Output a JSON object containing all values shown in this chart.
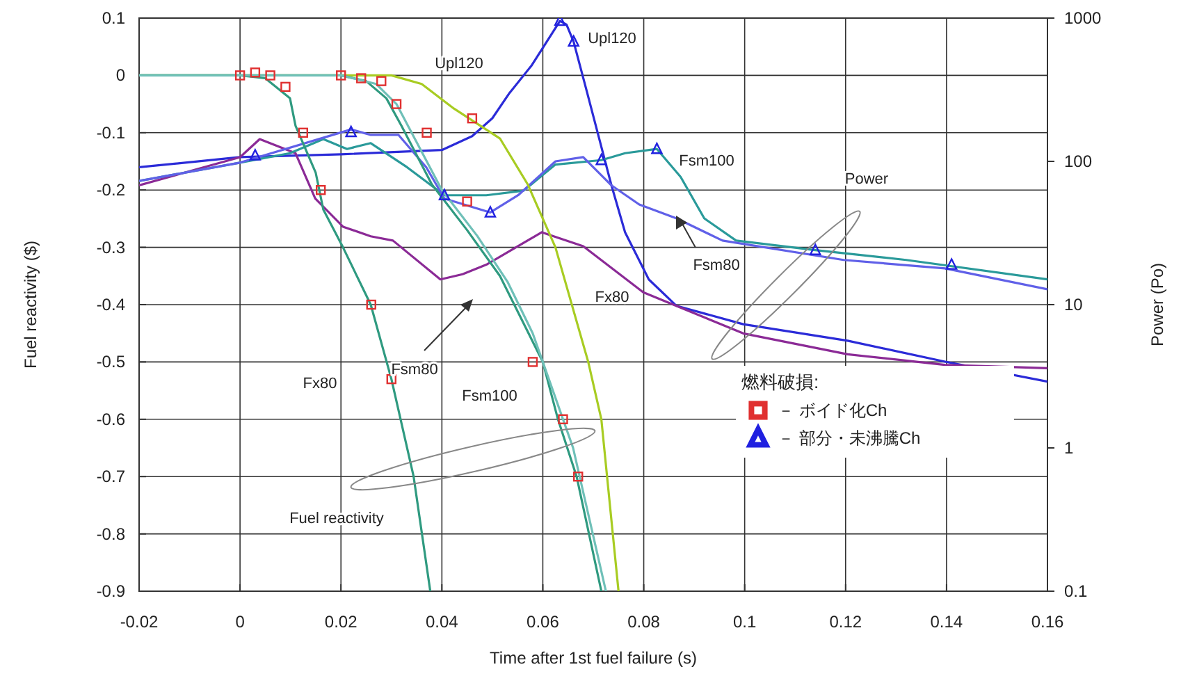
{
  "chart_data": {
    "type": "line",
    "xlabel": "Time after 1st fuel failure (s)",
    "ylabel": "Fuel reactivity ($)",
    "y2label": "Power (Po)",
    "xlim": [
      -0.02,
      0.16
    ],
    "xticks": [
      -0.02,
      0,
      0.02,
      0.04,
      0.06,
      0.08,
      0.1,
      0.12,
      0.14,
      0.16
    ],
    "ylim": [
      -0.9,
      0.1
    ],
    "yticks": [
      0.1,
      0,
      -0.1,
      -0.2,
      -0.3,
      -0.4,
      -0.5,
      -0.6,
      -0.7,
      -0.8,
      -0.9
    ],
    "y2lim": [
      0.1,
      1000
    ],
    "y2ticks": [
      0.1,
      1,
      10,
      100,
      1000
    ],
    "log": "y2",
    "grid": true,
    "legend": "bottom right",
    "legend_title": "燃料破損:",
    "series": [
      {
        "type": "line",
        "axis": "y2",
        "color": "#2b2bd8",
        "x": [
          -0.02,
          0,
          0.02,
          0.04,
          0.046,
          0.05,
          0.0534,
          0.0578,
          0.0634,
          0.0647,
          0.0661,
          0.0688,
          0.0736,
          0.0763,
          0.081,
          0.0865,
          0.0997,
          0.1204,
          0.1397,
          0.16
        ],
        "values": [
          91,
          107,
          112,
          120,
          150,
          200,
          300,
          468,
          955,
          900,
          685,
          300,
          68,
          32,
          15,
          9.8,
          7.3,
          5.6,
          4.0,
          2.9
        ]
      },
      {
        "type": "line",
        "axis": "y2",
        "color": "#8b2a96",
        "x": [
          -0.02,
          0,
          0.0039,
          0.011,
          0.0149,
          0.0204,
          0.0259,
          0.0303,
          0.0397,
          0.0441,
          0.0488,
          0.0598,
          0.068,
          0.0799,
          0.0997,
          0.1204,
          0.1397,
          0.16
        ],
        "values": [
          68,
          107,
          143,
          114,
          55,
          35,
          30,
          28,
          15,
          16.3,
          19,
          32,
          25.6,
          12.2,
          6.3,
          4.5,
          3.8,
          3.6
        ]
      },
      {
        "type": "line",
        "axis": "y2",
        "color": "#2a9a9a",
        "x": [
          -0.02,
          0,
          0.0099,
          0.0165,
          0.0212,
          0.0259,
          0.0331,
          0.0405,
          0.0488,
          0.0562,
          0.0625,
          0.0716,
          0.0763,
          0.0826,
          0.0873,
          0.092,
          0.0983,
          0.114,
          0.132,
          0.16
        ],
        "values": [
          73,
          98,
          114,
          143,
          122,
          134,
          91,
          58,
          58,
          62.5,
          95,
          102,
          114,
          122,
          78,
          40,
          28,
          24,
          20.5,
          15
        ]
      },
      {
        "type": "line",
        "axis": "y2",
        "color": "#6060e8",
        "x": [
          -0.02,
          0,
          0.022,
          0.0259,
          0.0314,
          0.0369,
          0.0405,
          0.0496,
          0.0551,
          0.0625,
          0.068,
          0.0736,
          0.0791,
          0.0865,
          0.0956,
          0.1196,
          0.1397,
          0.16
        ],
        "values": [
          73,
          98,
          167,
          153,
          153,
          91,
          55,
          44,
          58,
          100,
          107,
          68,
          50,
          40,
          28,
          20.5,
          17.9,
          12.8
        ]
      },
      {
        "type": "line",
        "color": "#a8cc22",
        "x": [
          -0.02,
          0.03,
          0.036,
          0.0424,
          0.0515,
          0.057,
          0.0625,
          0.069,
          0.0716,
          0.075
        ],
        "values": [
          0,
          0,
          -0.015,
          -0.058,
          -0.11,
          -0.19,
          -0.3,
          -0.5,
          -0.6,
          -0.9
        ]
      },
      {
        "type": "line",
        "color": "#2f9a80",
        "x": [
          -0.02,
          0,
          0.005,
          0.0099,
          0.011,
          0.015,
          0.0165,
          0.0204,
          0.0259,
          0.03,
          0.0344,
          0.0377
        ],
        "values": [
          0,
          0,
          -0.005,
          -0.04,
          -0.088,
          -0.17,
          -0.234,
          -0.3,
          -0.4,
          -0.53,
          -0.7,
          -0.9
        ]
      },
      {
        "type": "line",
        "color": "#2f9a80",
        "x": [
          -0.02,
          0.02,
          0.025,
          0.029,
          0.032,
          0.038,
          0.045,
          0.0515,
          0.06,
          0.063,
          0.0667,
          0.0716
        ],
        "values": [
          0,
          0,
          -0.01,
          -0.04,
          -0.088,
          -0.19,
          -0.27,
          -0.35,
          -0.5,
          -0.6,
          -0.7,
          -0.9
        ]
      },
      {
        "type": "line",
        "color": "#6fc0b8",
        "x": [
          -0.02,
          0.02,
          0.027,
          0.031,
          0.034,
          0.04,
          0.047,
          0.053,
          0.058,
          0.062,
          0.066,
          0.0725
        ],
        "values": [
          0,
          0,
          -0.015,
          -0.05,
          -0.1,
          -0.2,
          -0.28,
          -0.36,
          -0.45,
          -0.55,
          -0.65,
          -0.9
        ]
      },
      {
        "type": "scatter",
        "name": "－ ボイド化Ch",
        "color": "#e03030",
        "marker": "square",
        "x": [
          0,
          0.003,
          0.006,
          0.009,
          0.0125,
          0.016,
          0.026,
          0.03,
          0.02,
          0.024,
          0.028,
          0.031,
          0.037,
          0.045,
          0.046,
          0.058,
          0.064,
          0.067
        ],
        "values": [
          0,
          0.005,
          0,
          -0.02,
          -0.1,
          -0.2,
          -0.4,
          -0.53,
          0,
          -0.005,
          -0.01,
          -0.05,
          -0.1,
          -0.22,
          -0.075,
          -0.5,
          -0.6,
          -0.7
        ]
      },
      {
        "type": "scatter",
        "name": "－ 部分・未沸騰Ch",
        "color": "#2020e0",
        "marker": "triangle",
        "axis": "y2",
        "x": [
          0.003,
          0.022,
          0.0496,
          0.0405,
          0.0634,
          0.0661,
          0.0716,
          0.0826,
          0.114,
          0.141
        ],
        "values": [
          110,
          160,
          44,
          58,
          955,
          685,
          102,
          122,
          24,
          19
        ]
      }
    ],
    "annotations": [
      "Upl120",
      "Upl120",
      "Fsm100",
      "Power",
      "Fsm80",
      "Fx80",
      "Fsm80",
      "Fx80",
      "Fsm100",
      "Fuel reactivity"
    ]
  }
}
